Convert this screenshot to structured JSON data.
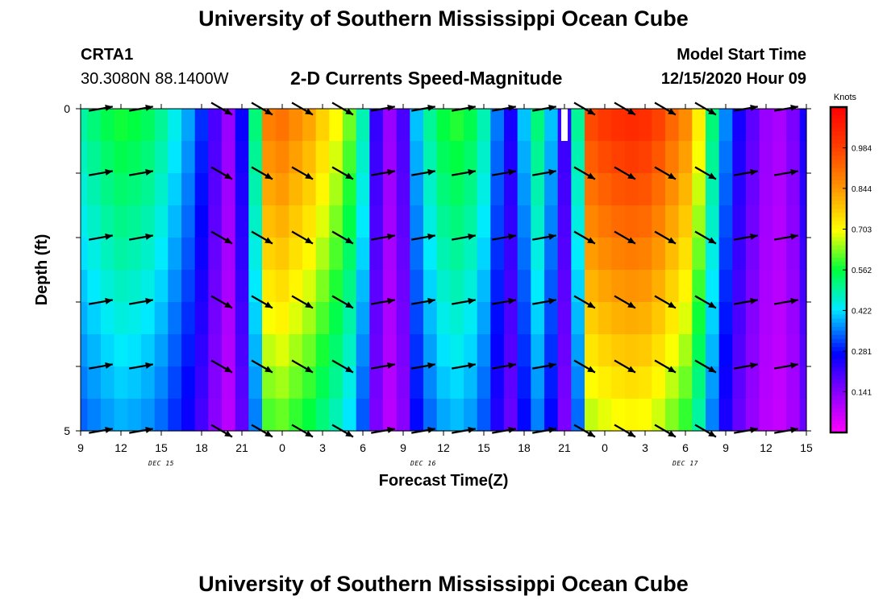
{
  "header": {
    "title": "University of Southern Mississippi Ocean Cube",
    "station_id": "CRTA1",
    "station_coords": "30.3080N 88.1400W",
    "chart_subtitle": "2-D Currents Speed-Magnitude",
    "model_label": "Model Start Time",
    "model_time": "12/15/2020 Hour 09"
  },
  "footer": {
    "title": "University of Southern Mississippi Ocean Cube"
  },
  "chart_data": {
    "type": "heatmap",
    "title": "2-D Currents Speed-Magnitude",
    "xlabel": "Forecast Time(Z)",
    "ylabel": "Depth (ft)",
    "x_tick_labels": [
      "9",
      "12",
      "15",
      "18",
      "21",
      "0",
      "3",
      "6",
      "9",
      "12",
      "15",
      "18",
      "21",
      "0",
      "3",
      "6",
      "9",
      "12",
      "15"
    ],
    "x_date_labels": [
      {
        "label": "DEC 15",
        "tick_index": 2
      },
      {
        "label": "DEC 16",
        "tick_index": 8.5
      },
      {
        "label": "DEC 17",
        "tick_index": 15
      }
    ],
    "x_range_hours": [
      0,
      54
    ],
    "y_tick_labels": [
      "0",
      "",
      "",
      "",
      "",
      "5"
    ],
    "y_range_ft": [
      0,
      5
    ],
    "colorbar": {
      "unit": "Knots",
      "min": 0.0,
      "max": 1.125,
      "tick_values": [
        "0.984",
        "0.844",
        "0.703",
        "0.562",
        "0.422",
        "0.281",
        "0.141"
      ]
    },
    "speed_knots_by_hour": [
      0.49,
      0.52,
      0.55,
      0.57,
      0.56,
      0.54,
      0.5,
      0.44,
      0.38,
      0.3,
      0.2,
      0.12,
      0.26,
      0.52,
      0.88,
      0.9,
      0.86,
      0.82,
      0.76,
      0.7,
      0.62,
      0.48,
      0.22,
      0.12,
      0.2,
      0.4,
      0.5,
      0.56,
      0.58,
      0.55,
      0.48,
      0.35,
      0.25,
      0.4,
      0.52,
      0.4,
      0.22,
      0.5,
      0.97,
      1.0,
      1.02,
      1.03,
      1.02,
      0.98,
      0.92,
      0.86,
      0.72,
      0.52,
      0.36,
      0.25,
      0.18,
      0.12,
      0.1,
      0.15,
      0.25
    ],
    "arrow_times_hours": [
      1.5,
      4.5,
      10.5,
      13.5,
      16.5,
      19.5,
      22.5,
      25.5,
      28.5,
      31.5,
      34.5,
      37.5,
      40.5,
      43.5,
      46.5,
      49.5,
      52.5
    ],
    "arrow_depths_ft": [
      0,
      1,
      2,
      3,
      4,
      5
    ],
    "arrow_directions_deg": [
      80,
      80,
      120,
      120,
      120,
      120,
      80,
      80,
      80,
      80,
      80,
      120,
      120,
      120,
      120,
      80,
      80
    ]
  }
}
